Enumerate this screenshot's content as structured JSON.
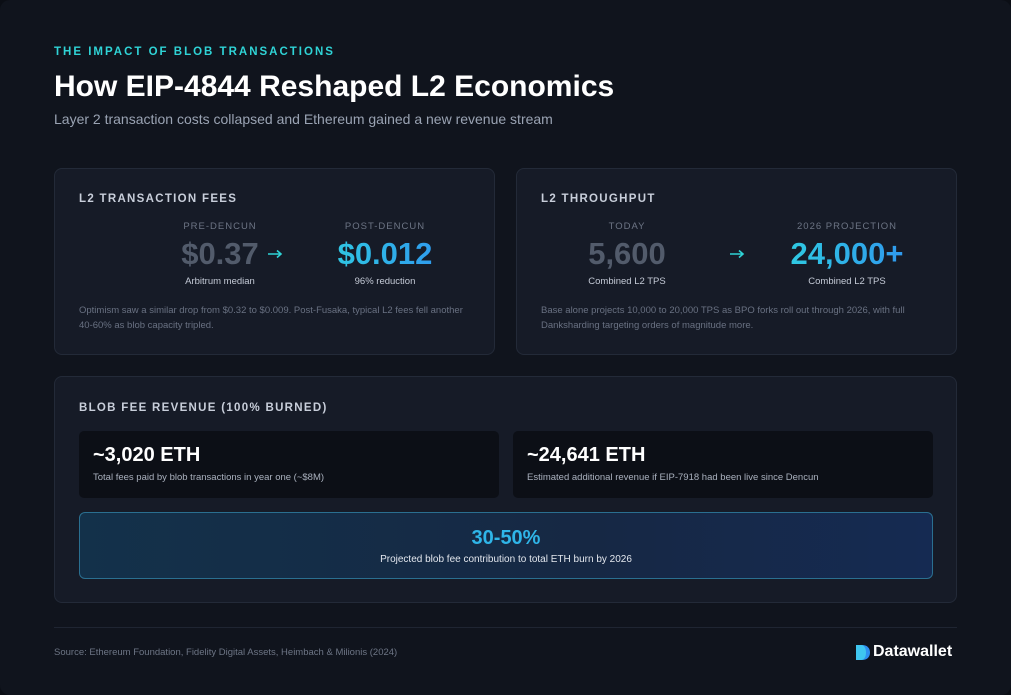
{
  "header": {
    "kicker": "THE IMPACT OF BLOB TRANSACTIONS",
    "title": "How EIP-4844 Reshaped L2 Economics",
    "subtitle": "Layer 2 transaction costs collapsed and Ethereum gained a new revenue stream"
  },
  "cards": [
    {
      "title": "L2 TRANSACTION FEES",
      "before": {
        "label": "PRE-DENCUN",
        "value": "$0.37",
        "note": "Arbitrum median"
      },
      "after": {
        "label": "POST-DENCUN",
        "value": "$0.012",
        "note": "96% reduction"
      },
      "body": "Optimism saw a similar drop from $0.32 to $0.009. Post-Fusaka, typical L2 fees fell another 40-60% as blob capacity tripled."
    },
    {
      "title": "L2 THROUGHPUT",
      "before": {
        "label": "TODAY",
        "value": "5,600",
        "note": "Combined L2 TPS"
      },
      "after": {
        "label": "2026 PROJECTION",
        "value": "24,000+",
        "note": "Combined L2 TPS"
      },
      "body": "Base alone projects 10,000 to 20,000 TPS as BPO forks roll out through 2026, with full Danksharding targeting orders of magnitude more."
    }
  ],
  "revenue": {
    "title": "BLOB FEE REVENUE (100% BURNED)",
    "stats": [
      {
        "value": "~3,020 ETH",
        "label": "Total fees paid by blob transactions in year one (~$8M)"
      },
      {
        "value": "~24,641 ETH",
        "label": "Estimated additional revenue if EIP-7918 had been live since Dencun"
      }
    ],
    "highlight": {
      "value": "30-50%",
      "label": "Projected blob fee contribution to total ETH burn by 2026"
    }
  },
  "footer": {
    "source": "Source: Ethereum Foundation, Fidelity Digital Assets, Heimbach & Milionis (2024)",
    "brand": "Datawallet"
  }
}
